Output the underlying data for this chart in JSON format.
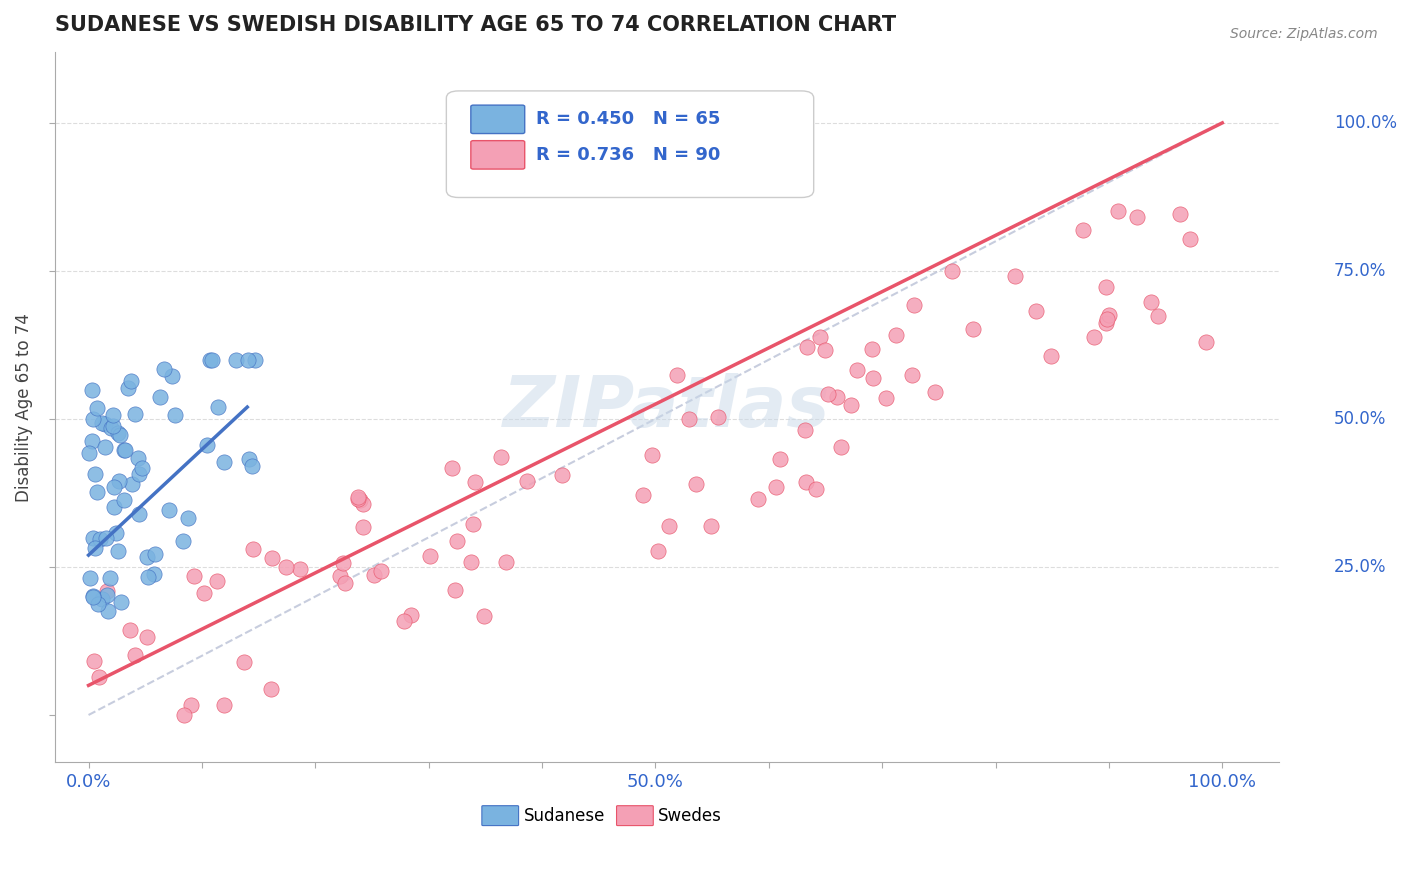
{
  "title": "SUDANESE VS SWEDISH DISABILITY AGE 65 TO 74 CORRELATION CHART",
  "source": "Source: ZipAtlas.com",
  "ylabel": "Disability Age 65 to 74",
  "xlim": [
    -0.03,
    1.05
  ],
  "ylim": [
    -0.08,
    1.12
  ],
  "legend_r1": "R = 0.450",
  "legend_n1": "N = 65",
  "legend_r2": "R = 0.736",
  "legend_n2": "N = 90",
  "color_sudanese": "#7ab3e0",
  "color_swedes": "#f4a0b5",
  "color_line_sudanese": "#4472c4",
  "color_line_swedes": "#e8546a",
  "color_diag": "#b0b8d0",
  "watermark": "ZIPatlas"
}
